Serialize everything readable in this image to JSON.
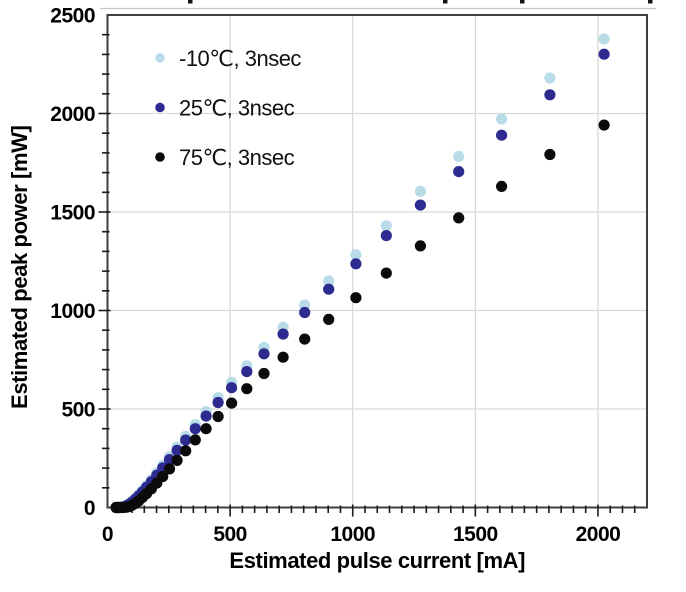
{
  "chart_data": {
    "type": "scatter",
    "title": "",
    "title_cropped_fragments_x": [
      188,
      443,
      520,
      648
    ],
    "xlabel": "Estimated pulse current [mA]",
    "ylabel": "Estimated peak power [mW]",
    "xlim": [
      0,
      2200
    ],
    "ylim": [
      0,
      2500
    ],
    "x_major_ticks": [
      0,
      500,
      1000,
      1500,
      2000
    ],
    "y_major_ticks": [
      0,
      500,
      1000,
      1500,
      2000,
      2500
    ],
    "x_minor_step": 50,
    "y_minor_step": 100,
    "grid": "major",
    "gridline_color": "#d9d9d9",
    "border_color": "#3f3f3f",
    "legend_position": "upper-left-inside",
    "x": [
      35,
      40,
      45,
      50,
      56,
      63,
      71,
      80,
      89,
      100,
      113,
      127,
      142,
      159,
      179,
      201,
      225,
      253,
      284,
      319,
      358,
      402,
      451,
      506,
      568,
      638,
      716,
      804,
      902,
      1013,
      1137,
      1276,
      1432,
      1607,
      1804,
      2025
    ],
    "series": [
      {
        "id": "minus10c",
        "name": "-10℃, 3nsec",
        "color": "#b9dce8",
        "values": [
          0,
          0,
          0,
          0,
          1,
          3,
          6,
          12,
          20,
          31,
          46,
          64,
          85,
          110,
          140,
          175,
          214,
          258,
          307,
          361,
          421,
          487,
          558,
          635,
          719,
          812,
          915,
          1028,
          1150,
          1283,
          1430,
          1605,
          1782,
          1972,
          2180,
          2378
        ]
      },
      {
        "id": "25c",
        "name": "25℃, 3nsec",
        "color": "#2d2b90",
        "values": [
          0,
          0,
          0,
          0,
          1,
          2,
          5,
          10,
          17,
          27,
          41,
          58,
          78,
          102,
          131,
          164,
          201,
          243,
          290,
          342,
          400,
          464,
          533,
          608,
          690,
          780,
          880,
          990,
          1108,
          1237,
          1380,
          1535,
          1705,
          1890,
          2095,
          2301
        ]
      },
      {
        "id": "75c",
        "name": "75℃, 3nsec",
        "color": "#0b0b0b",
        "values": [
          0,
          0,
          0,
          0,
          0,
          0,
          1,
          2,
          5,
          11,
          20,
          33,
          50,
          70,
          95,
          124,
          157,
          196,
          239,
          288,
          343,
          400,
          462,
          530,
          603,
          680,
          763,
          855,
          955,
          1065,
          1190,
          1328,
          1470,
          1630,
          1792,
          1941
        ]
      }
    ]
  }
}
